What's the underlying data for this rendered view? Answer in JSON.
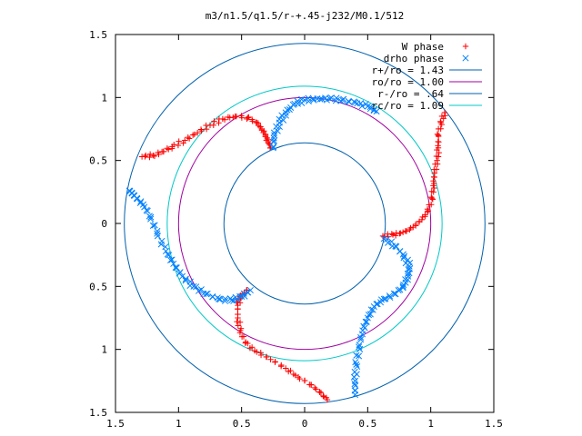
{
  "chart_data": {
    "type": "scatter",
    "title": "m3/n1.5/q1.5/r-+.45-j232/M0.1/512",
    "xlim": [
      -1.5,
      1.5
    ],
    "ylim": [
      -1.5,
      1.5
    ],
    "x_ticks": [
      -1.5,
      -1,
      -0.5,
      0,
      0.5,
      1,
      1.5
    ],
    "y_ticks": [
      -1.5,
      -1,
      -0.5,
      0,
      0.5,
      1,
      1.5
    ],
    "x_tick_labels": [
      "1.5",
      "1",
      "0.5",
      "0",
      "0.5",
      "1",
      "1.5"
    ],
    "y_tick_labels": [
      "1.5",
      "1",
      "0.5",
      "0",
      "0.5",
      "1",
      "1.5"
    ],
    "grid": false,
    "legend_position": "top-right",
    "series": [
      {
        "name": "W phase",
        "kind": "points",
        "marker": "+",
        "color": "#ff0000",
        "points": [
          [
            -0.27,
            0.6
          ],
          [
            -0.29,
            0.65
          ],
          [
            -0.31,
            0.7
          ],
          [
            -0.34,
            0.75
          ],
          [
            -0.38,
            0.8
          ],
          [
            -0.45,
            0.84
          ],
          [
            -0.55,
            0.85
          ],
          [
            -0.65,
            0.83
          ],
          [
            -0.75,
            0.78
          ],
          [
            -0.85,
            0.72
          ],
          [
            -0.95,
            0.66
          ],
          [
            -1.05,
            0.61
          ],
          [
            -1.12,
            0.57
          ],
          [
            -1.2,
            0.54
          ],
          [
            -1.29,
            0.53
          ],
          [
            0.62,
            -0.1
          ],
          [
            0.7,
            -0.09
          ],
          [
            0.78,
            -0.07
          ],
          [
            0.86,
            -0.03
          ],
          [
            0.93,
            0.03
          ],
          [
            0.98,
            0.1
          ],
          [
            1.01,
            0.2
          ],
          [
            1.02,
            0.3
          ],
          [
            1.03,
            0.4
          ],
          [
            1.05,
            0.5
          ],
          [
            1.06,
            0.6
          ],
          [
            1.06,
            0.7
          ],
          [
            1.08,
            0.8
          ],
          [
            1.11,
            0.88
          ],
          [
            -0.46,
            -0.53
          ],
          [
            -0.51,
            -0.58
          ],
          [
            -0.53,
            -0.65
          ],
          [
            -0.53,
            -0.75
          ],
          [
            -0.51,
            -0.85
          ],
          [
            -0.47,
            -0.95
          ],
          [
            -0.38,
            -1.02
          ],
          [
            -0.27,
            -1.08
          ],
          [
            -0.15,
            -1.15
          ],
          [
            -0.05,
            -1.22
          ],
          [
            0.05,
            -1.28
          ],
          [
            0.12,
            -1.34
          ],
          [
            0.18,
            -1.4
          ]
        ]
      },
      {
        "name": "drho phase",
        "kind": "points",
        "marker": "x",
        "color": "#0080ff",
        "points": [
          [
            -0.25,
            0.6
          ],
          [
            -0.24,
            0.7
          ],
          [
            -0.2,
            0.8
          ],
          [
            -0.15,
            0.88
          ],
          [
            -0.08,
            0.95
          ],
          [
            0.0,
            0.98
          ],
          [
            0.1,
            0.99
          ],
          [
            0.2,
            0.99
          ],
          [
            0.3,
            0.98
          ],
          [
            0.4,
            0.96
          ],
          [
            0.5,
            0.93
          ],
          [
            0.57,
            0.89
          ],
          [
            0.63,
            -0.12
          ],
          [
            0.72,
            -0.18
          ],
          [
            0.79,
            -0.26
          ],
          [
            0.83,
            -0.34
          ],
          [
            0.82,
            -0.42
          ],
          [
            0.78,
            -0.5
          ],
          [
            0.72,
            -0.56
          ],
          [
            0.63,
            -0.6
          ],
          [
            0.55,
            -0.66
          ],
          [
            0.5,
            -0.75
          ],
          [
            0.46,
            -0.85
          ],
          [
            0.43,
            -0.98
          ],
          [
            0.41,
            -1.12
          ],
          [
            0.4,
            -1.25
          ],
          [
            0.4,
            -1.36
          ],
          [
            -0.43,
            -0.53
          ],
          [
            -0.5,
            -0.58
          ],
          [
            -0.58,
            -0.61
          ],
          [
            -0.68,
            -0.6
          ],
          [
            -0.78,
            -0.56
          ],
          [
            -0.88,
            -0.5
          ],
          [
            -0.97,
            -0.42
          ],
          [
            -1.04,
            -0.32
          ],
          [
            -1.1,
            -0.22
          ],
          [
            -1.17,
            -0.08
          ],
          [
            -1.22,
            0.05
          ],
          [
            -1.28,
            0.15
          ],
          [
            -1.35,
            0.22
          ],
          [
            -1.39,
            0.26
          ]
        ]
      },
      {
        "name": "r+/ro = 1.43",
        "kind": "circle",
        "radius": 1.43,
        "color": "#0060ad"
      },
      {
        "name": "ro/ro = 1.00",
        "kind": "circle",
        "radius": 1.0,
        "color": "#a000a0"
      },
      {
        "name": "r-/ro = .64",
        "kind": "circle",
        "radius": 0.64,
        "color": "#0060ad"
      },
      {
        "name": "rc/ro = 1.09",
        "kind": "circle",
        "radius": 1.09,
        "color": "#00c8c8"
      }
    ]
  }
}
